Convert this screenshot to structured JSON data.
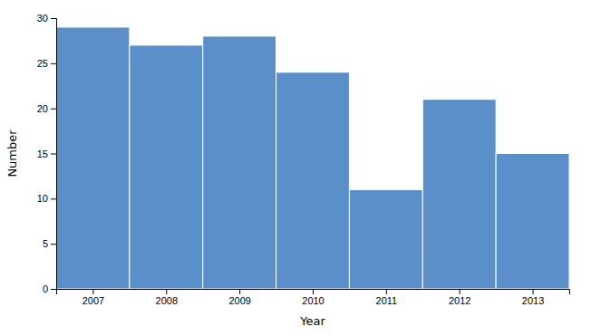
{
  "chart_data": {
    "type": "bar",
    "x": [
      2007,
      2008,
      2009,
      2010,
      2011,
      2012,
      2013
    ],
    "values": [
      29,
      27,
      28,
      24,
      11,
      21,
      15
    ],
    "color": "#5b8fc9",
    "xlabel": "Year",
    "ylabel": "Number",
    "xlim": [
      2006.5,
      2013.5
    ],
    "ylim": [
      0,
      30
    ],
    "xticks": [
      2007,
      2008,
      2009,
      2010,
      2011,
      2012,
      2013
    ],
    "yticks": [
      0,
      5,
      10,
      15,
      20,
      25,
      30
    ],
    "grid": false
  }
}
